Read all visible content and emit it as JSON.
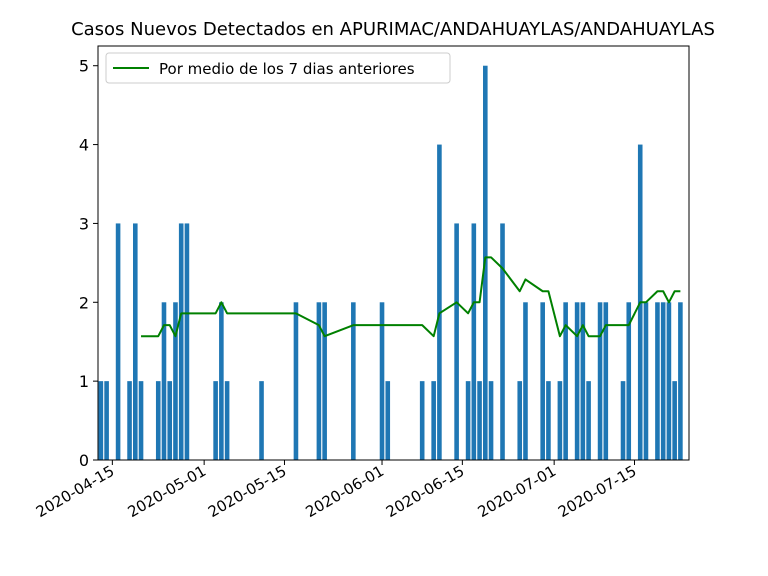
{
  "chart_data": {
    "type": "bar",
    "title": "Casos Nuevos Detectados en APURIMAC/ANDAHUAYLAS/ANDAHUAYLAS",
    "xlabel": "",
    "ylabel": "",
    "x_type": "date",
    "xlim": [
      "2020-04-13",
      "2020-07-24"
    ],
    "ylim": [
      0,
      5.25
    ],
    "y_ticks": [
      0,
      1,
      2,
      3,
      4,
      5
    ],
    "x_ticks": [
      "2020-04-15",
      "2020-05-01",
      "2020-05-15",
      "2020-06-01",
      "2020-06-15",
      "2020-07-01",
      "2020-07-15"
    ],
    "legend": {
      "position": "top-left",
      "entries": [
        "Por medio de los 7 dias anteriores"
      ]
    },
    "colors": {
      "bars": "#1f77b4",
      "line": "#008000"
    },
    "bars": {
      "dates": [
        "2020-04-13",
        "2020-04-14",
        "2020-04-16",
        "2020-04-18",
        "2020-04-19",
        "2020-04-20",
        "2020-04-23",
        "2020-04-24",
        "2020-04-25",
        "2020-04-26",
        "2020-04-27",
        "2020-04-28",
        "2020-05-03",
        "2020-05-04",
        "2020-05-05",
        "2020-05-11",
        "2020-05-17",
        "2020-05-21",
        "2020-05-22",
        "2020-05-27",
        "2020-06-01",
        "2020-06-02",
        "2020-06-08",
        "2020-06-10",
        "2020-06-11",
        "2020-06-14",
        "2020-06-16",
        "2020-06-17",
        "2020-06-18",
        "2020-06-19",
        "2020-06-20",
        "2020-06-22",
        "2020-06-25",
        "2020-06-26",
        "2020-06-29",
        "2020-06-30",
        "2020-07-02",
        "2020-07-03",
        "2020-07-05",
        "2020-07-06",
        "2020-07-07",
        "2020-07-09",
        "2020-07-10",
        "2020-07-13",
        "2020-07-14",
        "2020-07-16",
        "2020-07-17",
        "2020-07-19",
        "2020-07-20",
        "2020-07-21",
        "2020-07-22",
        "2020-07-23"
      ],
      "values": [
        1,
        1,
        3,
        1,
        3,
        1,
        1,
        2,
        1,
        2,
        3,
        3,
        1,
        2,
        1,
        1,
        2,
        2,
        2,
        2,
        2,
        1,
        1,
        1,
        4,
        3,
        1,
        3,
        1,
        5,
        1,
        3,
        1,
        2,
        2,
        1,
        1,
        2,
        2,
        2,
        1,
        2,
        2,
        1,
        2,
        4,
        2,
        2,
        2,
        2,
        1,
        2
      ]
    },
    "line": {
      "name": "Por medio de los 7 dias anteriores",
      "dates": [
        "2020-04-20",
        "2020-04-23",
        "2020-04-24",
        "2020-04-25",
        "2020-04-26",
        "2020-04-27",
        "2020-05-03",
        "2020-05-04",
        "2020-05-05",
        "2020-05-11",
        "2020-05-17",
        "2020-05-21",
        "2020-05-22",
        "2020-05-27",
        "2020-06-01",
        "2020-06-02",
        "2020-06-08",
        "2020-06-10",
        "2020-06-11",
        "2020-06-14",
        "2020-06-16",
        "2020-06-17",
        "2020-06-18",
        "2020-06-19",
        "2020-06-20",
        "2020-06-22",
        "2020-06-25",
        "2020-06-26",
        "2020-06-29",
        "2020-06-30",
        "2020-07-02",
        "2020-07-03",
        "2020-07-05",
        "2020-07-06",
        "2020-07-07",
        "2020-07-09",
        "2020-07-10",
        "2020-07-13",
        "2020-07-14",
        "2020-07-16",
        "2020-07-17",
        "2020-07-19",
        "2020-07-20",
        "2020-07-21",
        "2020-07-22",
        "2020-07-23"
      ],
      "values": [
        1.57,
        1.57,
        1.71,
        1.71,
        1.57,
        1.86,
        1.86,
        2.0,
        1.86,
        1.86,
        1.86,
        1.71,
        1.57,
        1.71,
        1.71,
        1.71,
        1.71,
        1.57,
        1.86,
        2.0,
        1.86,
        2.0,
        2.0,
        2.57,
        2.57,
        2.43,
        2.14,
        2.29,
        2.14,
        2.14,
        1.57,
        1.71,
        1.57,
        1.71,
        1.57,
        1.57,
        1.71,
        1.71,
        1.71,
        2.0,
        2.0,
        2.14,
        2.14,
        2.0,
        2.14,
        2.14
      ]
    }
  }
}
